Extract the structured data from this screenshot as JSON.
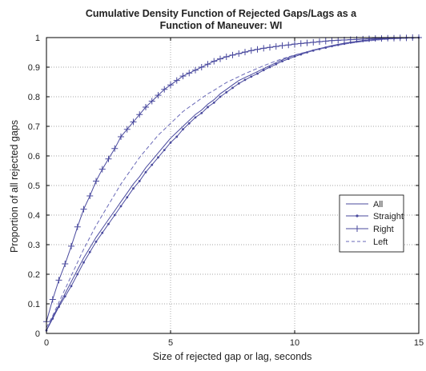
{
  "chart_data": {
    "type": "line",
    "title": "Cumulative Density Function of Rejected Gaps/Lags as a Function of Maneuver: WI",
    "title_lines": [
      "Cumulative Density Function of Rejected Gaps/Lags as a",
      "Function of Maneuver: WI"
    ],
    "xlabel": "Size of rejected gap or lag, seconds",
    "ylabel": "Proportion of all rejected gaps",
    "xlim": [
      0,
      15
    ],
    "ylim": [
      0,
      1
    ],
    "xticks": [
      0,
      5,
      10,
      15
    ],
    "yticks": [
      0,
      0.1,
      0.2,
      0.3,
      0.4,
      0.5,
      0.6,
      0.7,
      0.8,
      0.9,
      1
    ],
    "grid": true,
    "legend_position": "right, middle",
    "series": [
      {
        "name": "All",
        "color": "#4a4a9e",
        "dash": "solid",
        "marker": "none",
        "x": [
          0,
          0.25,
          0.5,
          0.75,
          1,
          1.25,
          1.5,
          1.75,
          2,
          2.25,
          2.5,
          2.75,
          3,
          3.25,
          3.5,
          3.75,
          4,
          4.25,
          4.5,
          4.75,
          5,
          5.25,
          5.5,
          5.75,
          6,
          6.25,
          6.5,
          6.75,
          7,
          7.25,
          7.5,
          7.75,
          8,
          8.25,
          8.5,
          8.75,
          9,
          9.25,
          9.5,
          9.75,
          10,
          10.25,
          10.5,
          10.75,
          11,
          11.25,
          11.5,
          11.75,
          12,
          12.25,
          12.5,
          12.75,
          13,
          13.25,
          13.5,
          13.75,
          14,
          14.25,
          14.5,
          14.75,
          15
        ],
        "y": [
          0.01,
          0.055,
          0.095,
          0.135,
          0.175,
          0.215,
          0.255,
          0.29,
          0.325,
          0.355,
          0.385,
          0.415,
          0.445,
          0.475,
          0.505,
          0.53,
          0.56,
          0.585,
          0.61,
          0.635,
          0.66,
          0.68,
          0.7,
          0.72,
          0.74,
          0.755,
          0.775,
          0.79,
          0.81,
          0.825,
          0.84,
          0.855,
          0.865,
          0.875,
          0.885,
          0.895,
          0.905,
          0.915,
          0.925,
          0.933,
          0.94,
          0.946,
          0.952,
          0.958,
          0.963,
          0.968,
          0.973,
          0.977,
          0.981,
          0.984,
          0.987,
          0.99,
          0.992,
          0.994,
          0.995,
          0.996,
          0.997,
          0.998,
          0.999,
          0.999,
          1.0
        ]
      },
      {
        "name": "Straight",
        "color": "#4a4a9e",
        "dash": "solid",
        "marker": "dot",
        "x": [
          0,
          0.25,
          0.5,
          0.75,
          1,
          1.25,
          1.5,
          1.75,
          2,
          2.25,
          2.5,
          2.75,
          3,
          3.25,
          3.5,
          3.75,
          4,
          4.25,
          4.5,
          4.75,
          5,
          5.25,
          5.5,
          5.75,
          6,
          6.25,
          6.5,
          6.75,
          7,
          7.25,
          7.5,
          7.75,
          8,
          8.25,
          8.5,
          8.75,
          9,
          9.25,
          9.5,
          9.75,
          10,
          10.25,
          10.5,
          10.75,
          11,
          11.25,
          11.5,
          11.75,
          12,
          12.25,
          12.5,
          12.75,
          13,
          13.25,
          13.5,
          13.75,
          14,
          14.25,
          14.5,
          14.75,
          15
        ],
        "y": [
          0.01,
          0.05,
          0.09,
          0.125,
          0.16,
          0.2,
          0.24,
          0.275,
          0.31,
          0.34,
          0.37,
          0.4,
          0.43,
          0.46,
          0.49,
          0.515,
          0.545,
          0.57,
          0.595,
          0.62,
          0.645,
          0.665,
          0.69,
          0.71,
          0.73,
          0.745,
          0.765,
          0.78,
          0.8,
          0.815,
          0.83,
          0.845,
          0.857,
          0.868,
          0.878,
          0.89,
          0.9,
          0.91,
          0.92,
          0.928,
          0.936,
          0.943,
          0.95,
          0.956,
          0.961,
          0.966,
          0.971,
          0.975,
          0.979,
          0.983,
          0.986,
          0.989,
          0.991,
          0.993,
          0.995,
          0.996,
          0.997,
          0.998,
          0.999,
          0.999,
          1.0
        ]
      },
      {
        "name": "Right",
        "color": "#4a4a9e",
        "dash": "solid",
        "marker": "plus",
        "x": [
          0,
          0.25,
          0.5,
          0.75,
          1,
          1.25,
          1.5,
          1.75,
          2,
          2.25,
          2.5,
          2.75,
          3,
          3.25,
          3.5,
          3.75,
          4,
          4.25,
          4.5,
          4.75,
          5,
          5.25,
          5.5,
          5.75,
          6,
          6.25,
          6.5,
          6.75,
          7,
          7.25,
          7.5,
          7.75,
          8,
          8.25,
          8.5,
          8.75,
          9,
          9.25,
          9.5,
          9.75,
          10,
          10.25,
          10.5,
          10.75,
          11,
          11.25,
          11.5,
          11.75,
          12,
          12.25,
          12.5,
          12.75,
          13,
          13.25,
          13.5,
          13.75,
          14,
          14.25,
          14.5,
          14.75,
          15
        ],
        "y": [
          0.04,
          0.115,
          0.18,
          0.235,
          0.295,
          0.36,
          0.42,
          0.465,
          0.515,
          0.555,
          0.59,
          0.625,
          0.665,
          0.69,
          0.715,
          0.74,
          0.765,
          0.785,
          0.805,
          0.825,
          0.84,
          0.855,
          0.87,
          0.88,
          0.89,
          0.9,
          0.91,
          0.92,
          0.928,
          0.935,
          0.941,
          0.946,
          0.951,
          0.956,
          0.96,
          0.964,
          0.967,
          0.97,
          0.973,
          0.975,
          0.978,
          0.98,
          0.982,
          0.984,
          0.986,
          0.988,
          0.99,
          0.991,
          0.992,
          0.993,
          0.994,
          0.995,
          0.996,
          0.997,
          0.997,
          0.998,
          0.998,
          0.999,
          0.999,
          1.0,
          1.0
        ]
      },
      {
        "name": "Left",
        "color": "#6a6ab8",
        "dash": "dashed",
        "marker": "none",
        "x": [
          0,
          0.25,
          0.5,
          0.75,
          1,
          1.25,
          1.5,
          1.75,
          2,
          2.25,
          2.5,
          2.75,
          3,
          3.25,
          3.5,
          3.75,
          4,
          4.25,
          4.5,
          4.75,
          5,
          5.25,
          5.5,
          5.75,
          6,
          6.25,
          6.5,
          6.75,
          7,
          7.25,
          7.5,
          7.75,
          8,
          8.25,
          8.5,
          8.75,
          9,
          9.25,
          9.5,
          9.75,
          10,
          10.25,
          10.5,
          10.75,
          11,
          11.25,
          11.5,
          11.75,
          12,
          12.25,
          12.5,
          12.75,
          13,
          13.25,
          13.5,
          13.75,
          14,
          14.25,
          14.5,
          14.75,
          15
        ],
        "y": [
          0.02,
          0.06,
          0.105,
          0.15,
          0.195,
          0.24,
          0.285,
          0.325,
          0.365,
          0.4,
          0.435,
          0.47,
          0.505,
          0.535,
          0.565,
          0.595,
          0.62,
          0.645,
          0.67,
          0.69,
          0.71,
          0.73,
          0.75,
          0.765,
          0.78,
          0.795,
          0.81,
          0.822,
          0.835,
          0.848,
          0.858,
          0.868,
          0.878,
          0.887,
          0.896,
          0.905,
          0.913,
          0.921,
          0.928,
          0.935,
          0.941,
          0.947,
          0.952,
          0.957,
          0.962,
          0.966,
          0.97,
          0.974,
          0.978,
          0.981,
          0.984,
          0.987,
          0.989,
          0.991,
          0.993,
          0.995,
          0.996,
          0.997,
          0.998,
          0.999,
          1.0
        ]
      }
    ]
  }
}
